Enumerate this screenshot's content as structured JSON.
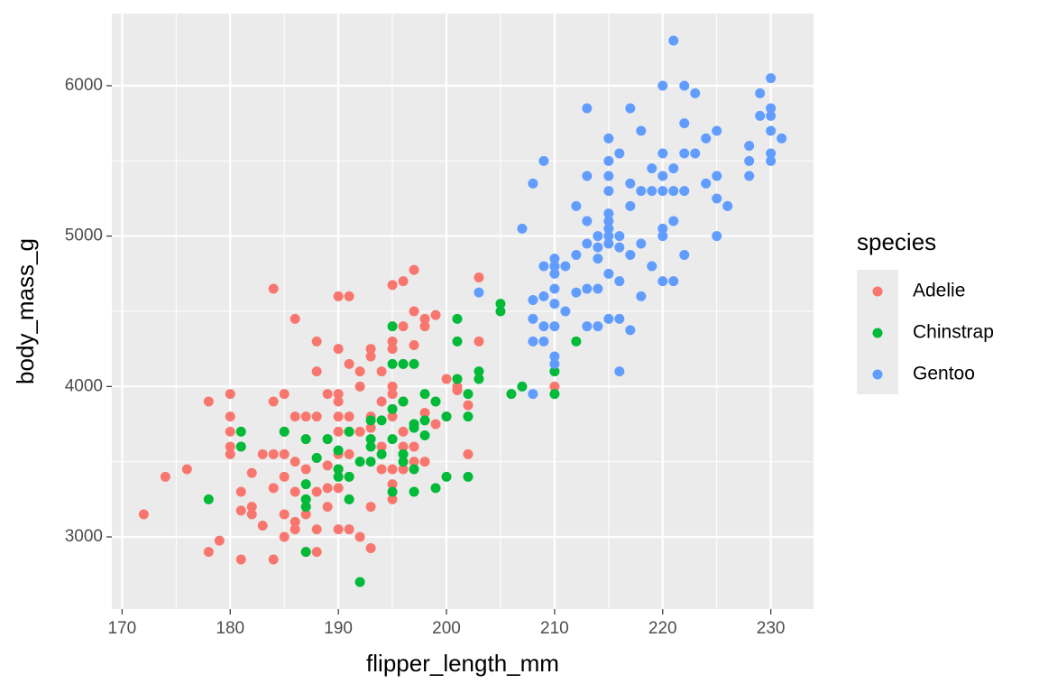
{
  "chart_data": {
    "type": "scatter",
    "x_label": "flipper_length_mm",
    "y_label": "body_mass_g",
    "legend_title": "species",
    "xlim": [
      169.05,
      233.95
    ],
    "ylim": [
      2520,
      6480
    ],
    "xticks": [
      170,
      180,
      190,
      200,
      210,
      220,
      230
    ],
    "yticks": [
      3000,
      4000,
      5000,
      6000
    ],
    "grid": true,
    "minor_grid": true,
    "legend_position": "right",
    "series": [
      {
        "name": "Adelie",
        "color": "#F8766D",
        "x": [
          172,
          174,
          176,
          178,
          178,
          179,
          180,
          180,
          180,
          180,
          180,
          181,
          181,
          181,
          182,
          182,
          182,
          183,
          183,
          184,
          184,
          184,
          184,
          184,
          185,
          185,
          185,
          185,
          185,
          185,
          186,
          186,
          186,
          186,
          186,
          186,
          187,
          187,
          187,
          187,
          187,
          187,
          188,
          188,
          188,
          188,
          188,
          188,
          188,
          189,
          189,
          189,
          189,
          189,
          190,
          190,
          190,
          190,
          190,
          190,
          190,
          190,
          190,
          190,
          191,
          191,
          191,
          191,
          191,
          191,
          191,
          192,
          192,
          192,
          192,
          192,
          193,
          193,
          193,
          193,
          193,
          193,
          194,
          194,
          194,
          194,
          195,
          195,
          195,
          195,
          195,
          195,
          195,
          195,
          195,
          196,
          196,
          196,
          196,
          196,
          196,
          196,
          197,
          197,
          197,
          197,
          197,
          197,
          198,
          198,
          198,
          198,
          199,
          199,
          199,
          200,
          200,
          201,
          201,
          202,
          202,
          203,
          203,
          210
        ],
        "values": [
          3150,
          3400,
          3450,
          3900,
          2900,
          2975,
          3950,
          3800,
          3700,
          3600,
          3550,
          3300,
          3175,
          2850,
          3200,
          3425,
          3150,
          3550,
          3075,
          4650,
          3900,
          3550,
          3325,
          2850,
          3950,
          3700,
          3550,
          3400,
          3150,
          3000,
          4450,
          3800,
          3500,
          3300,
          3050,
          3100,
          3800,
          3650,
          3450,
          3250,
          3150,
          2900,
          4300,
          4100,
          3800,
          3525,
          3300,
          3050,
          2900,
          3950,
          3650,
          3475,
          3325,
          3200,
          4600,
          4250,
          3950,
          3900,
          3800,
          3700,
          3550,
          3450,
          3325,
          3050,
          4600,
          4150,
          3800,
          3700,
          3550,
          3400,
          3050,
          4100,
          4000,
          3700,
          3500,
          3000,
          4250,
          4200,
          3800,
          3725,
          3200,
          2925,
          4100,
          3900,
          3600,
          3450,
          4675,
          4300,
          4250,
          4000,
          3950,
          3800,
          3450,
          3350,
          3250,
          4700,
          4400,
          4150,
          3900,
          3700,
          3600,
          3450,
          4775,
          4500,
          4275,
          3750,
          3600,
          3500,
          4450,
          4400,
          3825,
          3500,
          4475,
          3900,
          3750,
          4050,
          3800,
          4000,
          3975,
          3875,
          3550,
          4725,
          4300,
          4000
        ]
      },
      {
        "name": "Chinstrap",
        "color": "#00BA38",
        "x": [
          178,
          181,
          181,
          185,
          187,
          187,
          187,
          187,
          187,
          188,
          189,
          190,
          190,
          190,
          191,
          191,
          191,
          192,
          192,
          193,
          193,
          193,
          193,
          194,
          194,
          195,
          195,
          195,
          195,
          195,
          196,
          196,
          196,
          196,
          197,
          197,
          197,
          197,
          197,
          198,
          198,
          198,
          199,
          199,
          200,
          200,
          201,
          201,
          201,
          202,
          202,
          202,
          203,
          203,
          205,
          205,
          206,
          207,
          210,
          210,
          210,
          212
        ],
        "values": [
          3250,
          3700,
          3600,
          3700,
          3650,
          3350,
          3250,
          3200,
          2900,
          3525,
          3650,
          3575,
          3450,
          3400,
          3700,
          3250,
          3400,
          3500,
          2700,
          3775,
          3650,
          3600,
          3500,
          3775,
          3550,
          4400,
          4150,
          3850,
          3650,
          3300,
          4150,
          3550,
          3500,
          3900,
          4150,
          3750,
          3725,
          3450,
          3300,
          3950,
          3775,
          3675,
          3900,
          3325,
          3800,
          3400,
          4450,
          4300,
          4050,
          3950,
          3800,
          3400,
          4100,
          4050,
          4550,
          4500,
          3950,
          4000,
          4800,
          4100,
          3950,
          4300
        ]
      },
      {
        "name": "Gentoo",
        "color": "#619CFF",
        "x": [
          203,
          207,
          208,
          208,
          208,
          208,
          208,
          209,
          209,
          209,
          209,
          209,
          210,
          210,
          210,
          210,
          210,
          210,
          210,
          210,
          211,
          211,
          212,
          212,
          212,
          213,
          213,
          213,
          213,
          213,
          213,
          214,
          214,
          214,
          214,
          214,
          215,
          215,
          215,
          215,
          215,
          215,
          215,
          215,
          215,
          215,
          215,
          216,
          216,
          216,
          216,
          216,
          216,
          217,
          217,
          217,
          217,
          217,
          218,
          218,
          218,
          218,
          219,
          219,
          219,
          220,
          220,
          220,
          220,
          220,
          220,
          220,
          221,
          221,
          221,
          221,
          221,
          222,
          222,
          222,
          222,
          222,
          223,
          223,
          224,
          224,
          225,
          225,
          225,
          225,
          226,
          228,
          228,
          228,
          229,
          229,
          230,
          230,
          230,
          230,
          230,
          230,
          231
        ],
        "values": [
          4625,
          5050,
          5350,
          4575,
          4450,
          4300,
          3950,
          5500,
          4800,
          4600,
          4400,
          4300,
          4850,
          4800,
          4750,
          4650,
          4550,
          4400,
          4200,
          4150,
          4800,
          4500,
          5200,
          4875,
          4625,
          5850,
          5400,
          5100,
          4950,
          4650,
          4400,
          5000,
          4925,
          4850,
          4650,
          4400,
          5650,
          5500,
          5400,
          5300,
          5150,
          5100,
          5050,
          5000,
          4950,
          4750,
          4450,
          5550,
          5000,
          4925,
          4700,
          4450,
          4100,
          5850,
          5350,
          5200,
          4875,
          4375,
          5700,
          5300,
          4950,
          4600,
          5450,
          5300,
          4800,
          6000,
          5550,
          5400,
          5300,
          5050,
          5000,
          4700,
          6300,
          5450,
          5300,
          5100,
          4700,
          6000,
          5750,
          5550,
          5300,
          4875,
          5950,
          5550,
          5650,
          5350,
          5700,
          5400,
          5250,
          5000,
          5200,
          5600,
          5500,
          5400,
          5950,
          5800,
          6050,
          5850,
          5800,
          5700,
          5550,
          5500,
          5650
        ]
      }
    ]
  }
}
